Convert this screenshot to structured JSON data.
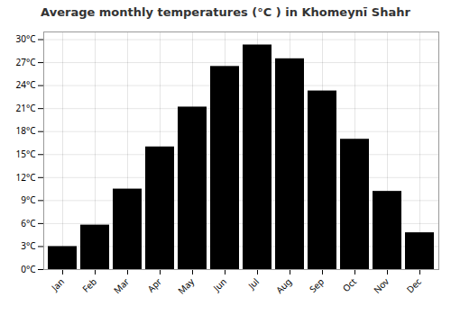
{
  "chart_data": {
    "type": "bar",
    "title": "Average monthly temperatures (°C ) in Khomeynī Shahr",
    "categories": [
      "Jan",
      "Feb",
      "Mar",
      "Apr",
      "May",
      "Jun",
      "Jul",
      "Aug",
      "Sep",
      "Oct",
      "Nov",
      "Dec"
    ],
    "values": [
      3.0,
      5.8,
      10.5,
      16.0,
      21.2,
      26.5,
      29.3,
      27.5,
      23.3,
      17.0,
      10.2,
      4.8
    ],
    "ylim": [
      0,
      31
    ],
    "yticks": [
      {
        "value": 0,
        "label": "0°C"
      },
      {
        "value": 3,
        "label": "3°C"
      },
      {
        "value": 6,
        "label": "6°C"
      },
      {
        "value": 9,
        "label": "9°C"
      },
      {
        "value": 12,
        "label": "12°C"
      },
      {
        "value": 15,
        "label": "15°C"
      },
      {
        "value": 18,
        "label": "18°C"
      },
      {
        "value": 21,
        "label": "21°C"
      },
      {
        "value": 24,
        "label": "24°C"
      },
      {
        "value": 27,
        "label": "27°C"
      },
      {
        "value": 30,
        "label": "30°C"
      }
    ],
    "grid": true
  }
}
